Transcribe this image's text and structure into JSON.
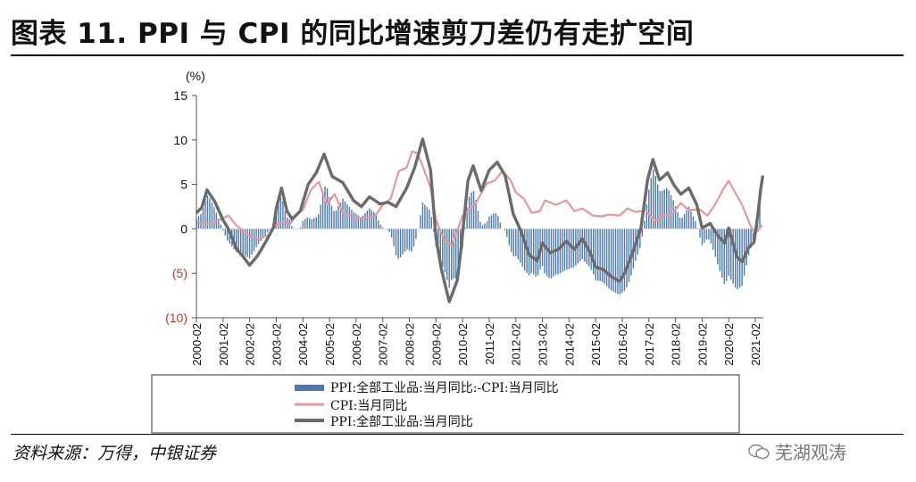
{
  "header": {
    "title": "图表 11. PPI 与 CPI 的同比增速剪刀差仍有走扩空间"
  },
  "footer": {
    "source": "资料来源：万得，中银证券",
    "watermark": "芜湖观涛"
  },
  "chart_data": {
    "type": "line",
    "unit_label": "(%)",
    "y_ticks": [
      "15",
      "10",
      "5",
      "0",
      "(5)",
      "(10)"
    ],
    "y_tick_values": [
      15,
      10,
      5,
      0,
      -5,
      -10
    ],
    "ylim": [
      -10,
      15
    ],
    "x_ticks": [
      "2000-02",
      "2001-02",
      "2002-02",
      "2003-02",
      "2004-02",
      "2005-02",
      "2006-02",
      "2007-02",
      "2008-02",
      "2009-02",
      "2010-02",
      "2011-02",
      "2012-02",
      "2013-02",
      "2014-02",
      "2015-02",
      "2016-02",
      "2017-02",
      "2018-02",
      "2019-02",
      "2020-02",
      "2021-02"
    ],
    "xlim": [
      2000.0,
      2021.3
    ],
    "legend": [
      "PPI:全部工业品:当月同比:-CPI:当月同比",
      "CPI:当月同比",
      "PPI:全部工业品:当月同比"
    ],
    "colors": {
      "diff": "#4a78b5",
      "cpi": "#e39a9a",
      "ppi": "#6b6b6b",
      "neg_tick": "#c0392b"
    },
    "cpi_points": [
      [
        2000.0,
        0.7
      ],
      [
        2000.5,
        0.5
      ],
      [
        2001.0,
        1.2
      ],
      [
        2001.2,
        1.5
      ],
      [
        2001.5,
        0.4
      ],
      [
        2002.0,
        -0.8
      ],
      [
        2002.3,
        -1.2
      ],
      [
        2002.7,
        -0.7
      ],
      [
        2003.0,
        0.4
      ],
      [
        2003.3,
        0.9
      ],
      [
        2003.5,
        0.5
      ],
      [
        2003.8,
        1.8
      ],
      [
        2004.0,
        2.1
      ],
      [
        2004.3,
        4.4
      ],
      [
        2004.6,
        5.3
      ],
      [
        2004.9,
        2.8
      ],
      [
        2005.2,
        3.9
      ],
      [
        2005.5,
        1.8
      ],
      [
        2005.9,
        1.3
      ],
      [
        2006.3,
        1.2
      ],
      [
        2006.7,
        1.4
      ],
      [
        2007.0,
        2.7
      ],
      [
        2007.3,
        3.4
      ],
      [
        2007.6,
        6.5
      ],
      [
        2007.9,
        6.9
      ],
      [
        2008.1,
        8.7
      ],
      [
        2008.3,
        8.5
      ],
      [
        2008.5,
        7.1
      ],
      [
        2008.8,
        4.6
      ],
      [
        2009.0,
        1.0
      ],
      [
        2009.3,
        -1.2
      ],
      [
        2009.6,
        -1.8
      ],
      [
        2009.9,
        0.6
      ],
      [
        2010.0,
        1.5
      ],
      [
        2010.5,
        2.9
      ],
      [
        2010.9,
        5.1
      ],
      [
        2011.2,
        5.4
      ],
      [
        2011.5,
        6.5
      ],
      [
        2011.8,
        5.5
      ],
      [
        2012.0,
        4.1
      ],
      [
        2012.3,
        3.4
      ],
      [
        2012.6,
        1.8
      ],
      [
        2012.9,
        2.0
      ],
      [
        2013.1,
        3.2
      ],
      [
        2013.5,
        2.7
      ],
      [
        2013.9,
        3.2
      ],
      [
        2014.2,
        2.0
      ],
      [
        2014.5,
        2.3
      ],
      [
        2014.9,
        1.5
      ],
      [
        2015.2,
        1.4
      ],
      [
        2015.5,
        1.6
      ],
      [
        2015.9,
        1.5
      ],
      [
        2016.2,
        2.3
      ],
      [
        2016.5,
        1.9
      ],
      [
        2016.9,
        2.1
      ],
      [
        2017.2,
        0.8
      ],
      [
        2017.5,
        1.5
      ],
      [
        2017.9,
        1.8
      ],
      [
        2018.2,
        2.9
      ],
      [
        2018.5,
        2.1
      ],
      [
        2018.9,
        2.2
      ],
      [
        2019.2,
        1.5
      ],
      [
        2019.5,
        2.8
      ],
      [
        2019.8,
        4.5
      ],
      [
        2020.0,
        5.4
      ],
      [
        2020.2,
        4.3
      ],
      [
        2020.5,
        2.7
      ],
      [
        2020.8,
        0.5
      ],
      [
        2020.95,
        -0.5
      ],
      [
        2021.1,
        -0.2
      ],
      [
        2021.25,
        0.4
      ]
    ],
    "ppi_points": [
      [
        2000.0,
        1.8
      ],
      [
        2000.2,
        2.4
      ],
      [
        2000.4,
        4.4
      ],
      [
        2000.7,
        3.0
      ],
      [
        2001.0,
        1.0
      ],
      [
        2001.2,
        0.0
      ],
      [
        2001.5,
        -2.2
      ],
      [
        2001.8,
        -3.3
      ],
      [
        2002.0,
        -4.1
      ],
      [
        2002.3,
        -3.0
      ],
      [
        2002.6,
        -1.5
      ],
      [
        2002.9,
        0.2
      ],
      [
        2003.0,
        2.3
      ],
      [
        2003.2,
        4.6
      ],
      [
        2003.4,
        2.0
      ],
      [
        2003.6,
        1.1
      ],
      [
        2003.9,
        2.0
      ],
      [
        2004.2,
        5.0
      ],
      [
        2004.5,
        6.3
      ],
      [
        2004.8,
        8.4
      ],
      [
        2005.1,
        5.9
      ],
      [
        2005.5,
        5.2
      ],
      [
        2005.9,
        3.2
      ],
      [
        2006.2,
        2.5
      ],
      [
        2006.5,
        3.6
      ],
      [
        2006.9,
        2.8
      ],
      [
        2007.2,
        3.0
      ],
      [
        2007.5,
        2.5
      ],
      [
        2007.9,
        4.6
      ],
      [
        2008.2,
        6.9
      ],
      [
        2008.5,
        10.1
      ],
      [
        2008.8,
        6.6
      ],
      [
        2009.0,
        -1.0
      ],
      [
        2009.2,
        -4.5
      ],
      [
        2009.5,
        -8.2
      ],
      [
        2009.8,
        -5.8
      ],
      [
        2009.95,
        -2.1
      ],
      [
        2010.2,
        5.4
      ],
      [
        2010.4,
        7.1
      ],
      [
        2010.7,
        4.3
      ],
      [
        2011.0,
        6.6
      ],
      [
        2011.3,
        7.5
      ],
      [
        2011.6,
        6.0
      ],
      [
        2011.9,
        1.7
      ],
      [
        2012.2,
        -0.3
      ],
      [
        2012.5,
        -2.9
      ],
      [
        2012.8,
        -3.6
      ],
      [
        2013.0,
        -1.6
      ],
      [
        2013.3,
        -2.7
      ],
      [
        2013.6,
        -2.3
      ],
      [
        2013.9,
        -1.4
      ],
      [
        2014.2,
        -2.3
      ],
      [
        2014.5,
        -1.1
      ],
      [
        2014.8,
        -2.7
      ],
      [
        2015.0,
        -4.3
      ],
      [
        2015.3,
        -4.6
      ],
      [
        2015.6,
        -5.4
      ],
      [
        2015.9,
        -5.9
      ],
      [
        2016.1,
        -4.9
      ],
      [
        2016.4,
        -2.6
      ],
      [
        2016.7,
        0.1
      ],
      [
        2016.95,
        5.5
      ],
      [
        2017.15,
        7.8
      ],
      [
        2017.4,
        5.5
      ],
      [
        2017.7,
        6.3
      ],
      [
        2017.95,
        4.9
      ],
      [
        2018.2,
        3.9
      ],
      [
        2018.5,
        4.6
      ],
      [
        2018.8,
        2.7
      ],
      [
        2019.0,
        0.1
      ],
      [
        2019.3,
        0.6
      ],
      [
        2019.6,
        -0.8
      ],
      [
        2019.85,
        -1.6
      ],
      [
        2020.0,
        0.1
      ],
      [
        2020.3,
        -3.1
      ],
      [
        2020.5,
        -3.7
      ],
      [
        2020.75,
        -2.1
      ],
      [
        2020.95,
        -1.5
      ],
      [
        2021.1,
        1.7
      ],
      [
        2021.2,
        4.4
      ],
      [
        2021.28,
        6.0
      ]
    ]
  }
}
